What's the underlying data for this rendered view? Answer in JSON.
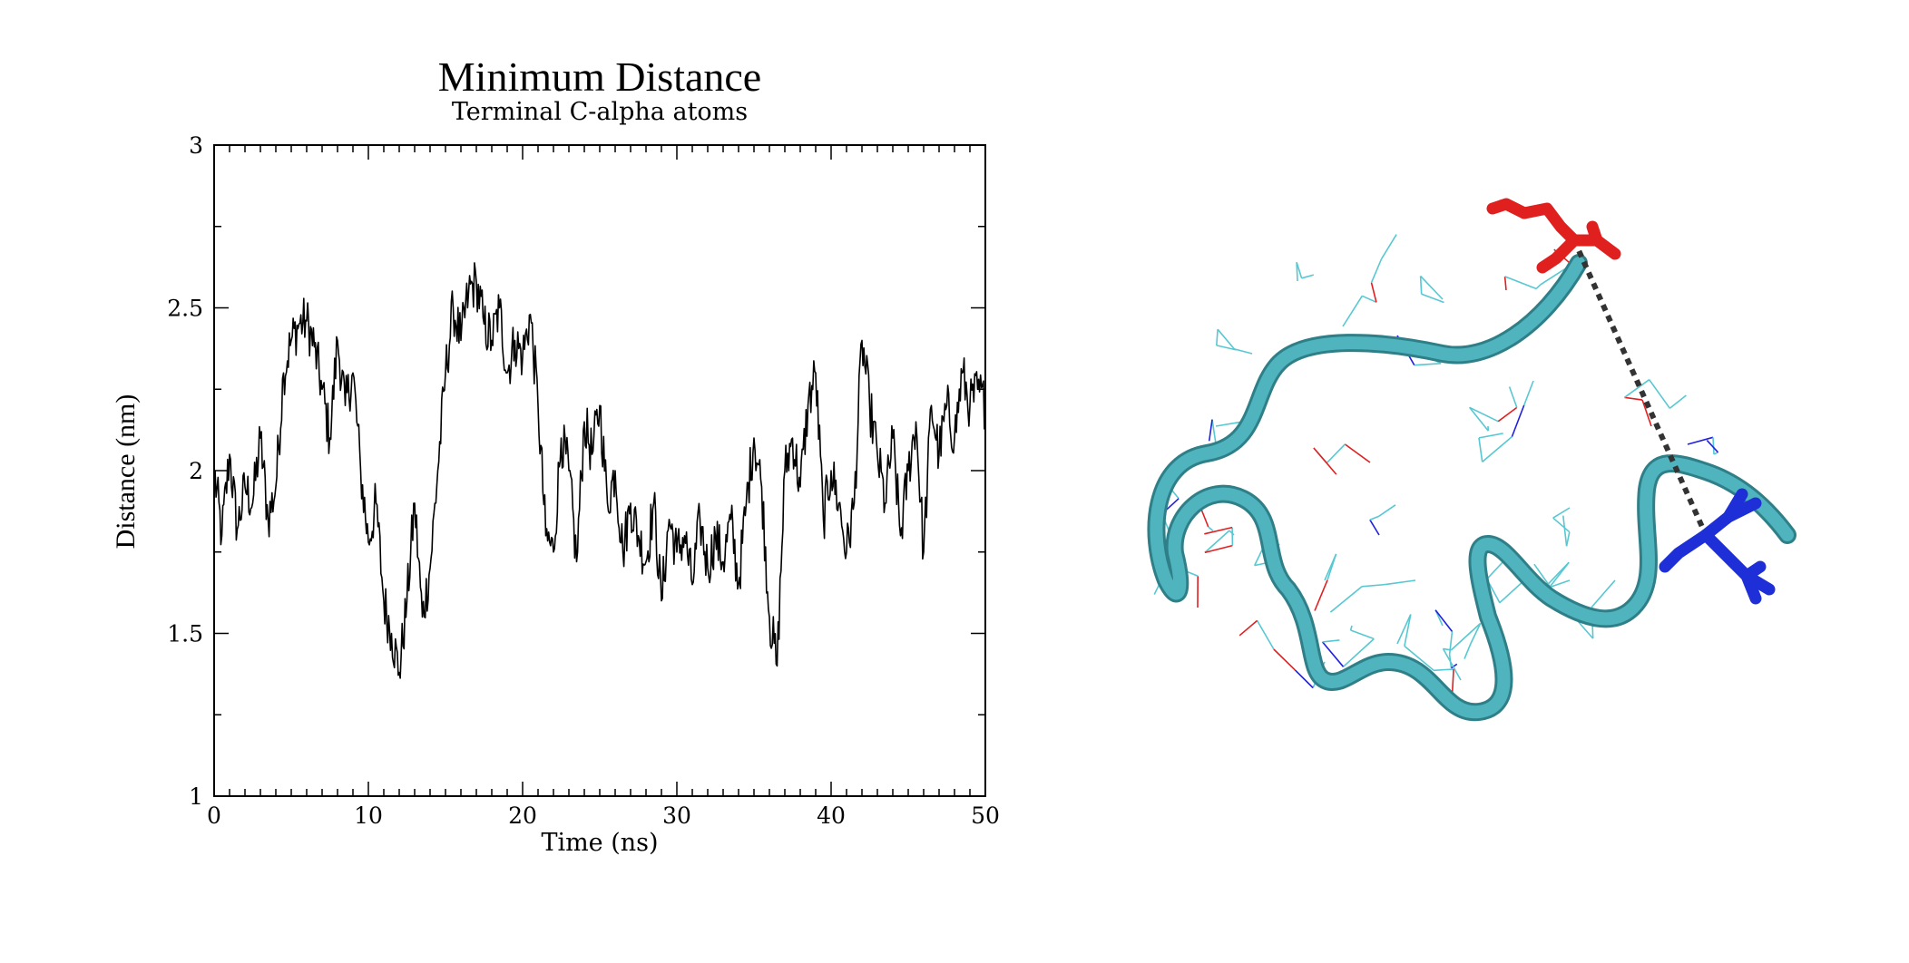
{
  "chart_data": {
    "type": "line",
    "title": "Minimum Distance",
    "subtitle": "Terminal C-alpha atoms",
    "xlabel": "Time (ns)",
    "ylabel": "Distance (nm)",
    "xlim": [
      0,
      50
    ],
    "ylim": [
      1,
      3
    ],
    "xticks": [
      0,
      10,
      20,
      30,
      40,
      50
    ],
    "yticks": [
      1,
      1.5,
      2,
      2.5,
      3
    ],
    "xtick_labels": [
      "0",
      "10",
      "20",
      "30",
      "40",
      "50"
    ],
    "ytick_labels": [
      "1",
      "1.5",
      "2",
      "2.5",
      "3"
    ],
    "grid": false,
    "series": [
      {
        "color": "#000000",
        "x": [
          0,
          0.5,
          1,
          1.5,
          2,
          2.5,
          3,
          3.5,
          4,
          4.5,
          5,
          5.5,
          6,
          6.5,
          7,
          7.5,
          8,
          8.5,
          9,
          9.5,
          10,
          10.5,
          11,
          11.5,
          12,
          12.5,
          13,
          13.5,
          14,
          14.5,
          15,
          15.5,
          16,
          16.5,
          17,
          17.5,
          18,
          18.5,
          19,
          19.5,
          20,
          20.5,
          21,
          21.5,
          22,
          22.5,
          23,
          23.5,
          24,
          24.5,
          25,
          25.5,
          26,
          26.5,
          27,
          27.5,
          28,
          28.5,
          29,
          29.5,
          30,
          30.5,
          31,
          31.5,
          32,
          32.5,
          33,
          33.5,
          34,
          34.5,
          35,
          35.5,
          36,
          36.5,
          37,
          37.5,
          38,
          38.5,
          39,
          39.5,
          40,
          40.5,
          41,
          41.5,
          42,
          42.5,
          43,
          43.5,
          44,
          44.5,
          45,
          45.5,
          46,
          46.5,
          47,
          47.5,
          48,
          48.5,
          49,
          49.5,
          50
        ],
        "y": [
          2.0,
          1.8,
          2.05,
          1.82,
          1.95,
          1.9,
          2.1,
          1.85,
          1.95,
          2.3,
          2.4,
          2.45,
          2.46,
          2.38,
          2.25,
          2.1,
          2.4,
          2.2,
          2.3,
          2.0,
          1.78,
          1.9,
          1.6,
          1.5,
          1.38,
          1.6,
          1.9,
          1.55,
          1.7,
          2.0,
          2.3,
          2.5,
          2.4,
          2.55,
          2.58,
          2.45,
          2.4,
          2.5,
          2.3,
          2.4,
          2.35,
          2.48,
          2.2,
          1.8,
          1.75,
          2.1,
          2.0,
          1.72,
          2.15,
          2.05,
          2.2,
          1.9,
          2.0,
          1.75,
          1.9,
          1.8,
          1.72,
          1.9,
          1.6,
          1.85,
          1.75,
          1.8,
          1.65,
          1.85,
          1.7,
          1.8,
          1.72,
          1.85,
          1.65,
          1.9,
          2.1,
          1.95,
          1.55,
          1.4,
          2.0,
          2.1,
          1.95,
          2.2,
          2.3,
          1.85,
          2.0,
          1.9,
          1.75,
          1.9,
          2.4,
          2.2,
          2.05,
          1.9,
          2.1,
          1.8,
          2.0,
          2.15,
          1.75,
          2.2,
          2.05,
          2.2,
          2.1,
          2.3,
          2.2,
          2.25,
          2.2
        ]
      }
    ]
  },
  "molecule": {
    "ribbon_color": "#4fb4be",
    "sidechain_color": "#57c8d2",
    "terminal_a_color": "#e01f1f",
    "terminal_b_color": "#1f2fd8",
    "oxygen_color": "#e02020",
    "nitrogen_color": "#2020e0",
    "distance_line_color": "#333333"
  }
}
